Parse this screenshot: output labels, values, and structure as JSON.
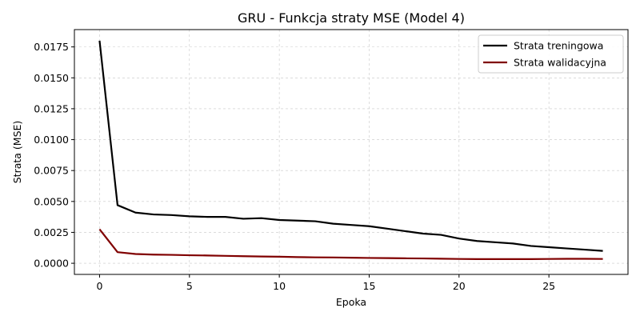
{
  "chart_data": {
    "type": "line",
    "title": "GRU - Funkcja straty MSE (Model 4)",
    "xlabel": "Epoka",
    "ylabel": "Strata (MSE)",
    "xlim": [
      -1.4,
      29.4
    ],
    "ylim": [
      -0.0009,
      0.0189
    ],
    "x_ticks": [
      0,
      5,
      10,
      15,
      20,
      25
    ],
    "y_ticks": [
      0.0,
      0.0025,
      0.005,
      0.0075,
      0.01,
      0.0125,
      0.015,
      0.0175
    ],
    "y_tick_labels": [
      "0.0000",
      "0.0025",
      "0.0050",
      "0.0075",
      "0.0100",
      "0.0125",
      "0.0150",
      "0.0175"
    ],
    "grid": true,
    "legend_position": "top-right",
    "x": [
      0,
      1,
      2,
      3,
      4,
      5,
      6,
      7,
      8,
      9,
      10,
      11,
      12,
      13,
      14,
      15,
      16,
      17,
      18,
      19,
      20,
      21,
      22,
      23,
      24,
      25,
      26,
      27,
      28
    ],
    "series": [
      {
        "name": "Strata treningowa",
        "color": "#000000",
        "values": [
          0.018,
          0.0047,
          0.0041,
          0.00395,
          0.0039,
          0.0038,
          0.00375,
          0.00375,
          0.0036,
          0.00365,
          0.0035,
          0.00345,
          0.0034,
          0.0032,
          0.0031,
          0.003,
          0.0028,
          0.0026,
          0.0024,
          0.0023,
          0.002,
          0.0018,
          0.0017,
          0.0016,
          0.0014,
          0.0013,
          0.0012,
          0.0011,
          0.001
        ]
      },
      {
        "name": "Strata walidacyjna",
        "color": "#800000",
        "values": [
          0.00275,
          0.0009,
          0.00075,
          0.0007,
          0.00068,
          0.00065,
          0.00063,
          0.0006,
          0.00057,
          0.00055,
          0.00053,
          0.0005,
          0.00048,
          0.00047,
          0.00045,
          0.00043,
          0.00042,
          0.0004,
          0.00039,
          0.00037,
          0.00035,
          0.00034,
          0.00034,
          0.00034,
          0.00034,
          0.00035,
          0.00036,
          0.00036,
          0.00035
        ]
      }
    ]
  }
}
